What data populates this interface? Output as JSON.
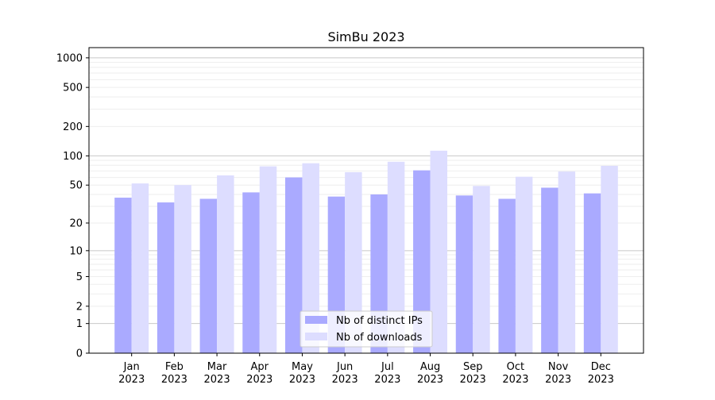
{
  "chart_data": {
    "type": "bar",
    "title": "SimBu 2023",
    "xlabel": "",
    "ylabel": "",
    "yscale": "log(1+y)",
    "ylim": [
      0,
      1270
    ],
    "yticks": [
      0,
      1,
      2,
      5,
      10,
      20,
      50,
      100,
      200,
      500,
      1000
    ],
    "ytick_labels": [
      "0",
      "1",
      "2",
      "5",
      "10",
      "20",
      "50",
      "100",
      "200",
      "500",
      "1000"
    ],
    "categories": [
      "Jan\n2023",
      "Feb\n2023",
      "Mar\n2023",
      "Apr\n2023",
      "May\n2023",
      "Jun\n2023",
      "Jul\n2023",
      "Aug\n2023",
      "Sep\n2023",
      "Oct\n2023",
      "Nov\n2023",
      "Dec\n2023"
    ],
    "grid": true,
    "legend_position": "bottom-center",
    "series": [
      {
        "name": "Nb of distinct IPs",
        "color": "#aaaaff",
        "values": [
          37,
          33,
          36,
          42,
          60,
          38,
          40,
          71,
          39,
          36,
          47,
          41
        ]
      },
      {
        "name": "Nb of downloads",
        "color": "#ddddff",
        "values": [
          52,
          50,
          63,
          78,
          84,
          68,
          87,
          113,
          49,
          61,
          69,
          79
        ]
      }
    ]
  }
}
